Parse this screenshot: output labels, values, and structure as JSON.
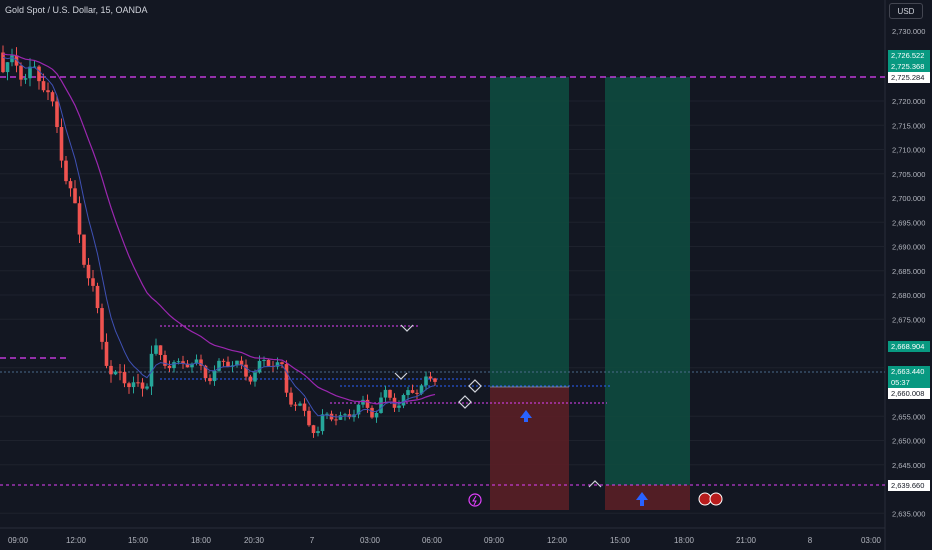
{
  "header": {
    "title": "Gold Spot / U.S. Dollar, 15, OANDA",
    "currency": "USD"
  },
  "price_axis": {
    "ticks": [
      "2,720.000",
      "2,715.000",
      "2,710.000",
      "2,705.000",
      "2,700.000",
      "2,695.000",
      "2,690.000",
      "2,685.000",
      "2,680.000",
      "2,675.000",
      "2,665.000",
      "2,655.000",
      "2,650.000",
      "2,645.000",
      "2,635.000"
    ],
    "labels": {
      "p1": "2,726.522",
      "p2": "2,725.368",
      "p3": "2,725.284",
      "p4": "2,668.904",
      "p5": "2,663.440",
      "p5_timer": "05:37",
      "p6": "2,660.008",
      "p7": "2,639.660",
      "top_tick": "2,730.000"
    }
  },
  "time_axis": [
    "09:00",
    "12:00",
    "15:00",
    "18:00",
    "20:30",
    "7",
    "03:00",
    "06:00",
    "09:00",
    "12:00",
    "15:00",
    "18:00",
    "21:00",
    "8",
    "03:00"
  ],
  "colors": {
    "up": "#26a69a",
    "down": "#ef5350",
    "magenta": "#e040fb",
    "blue": "#2962ff",
    "profit": "#0e4a3f",
    "loss": "#5a1f26"
  }
}
